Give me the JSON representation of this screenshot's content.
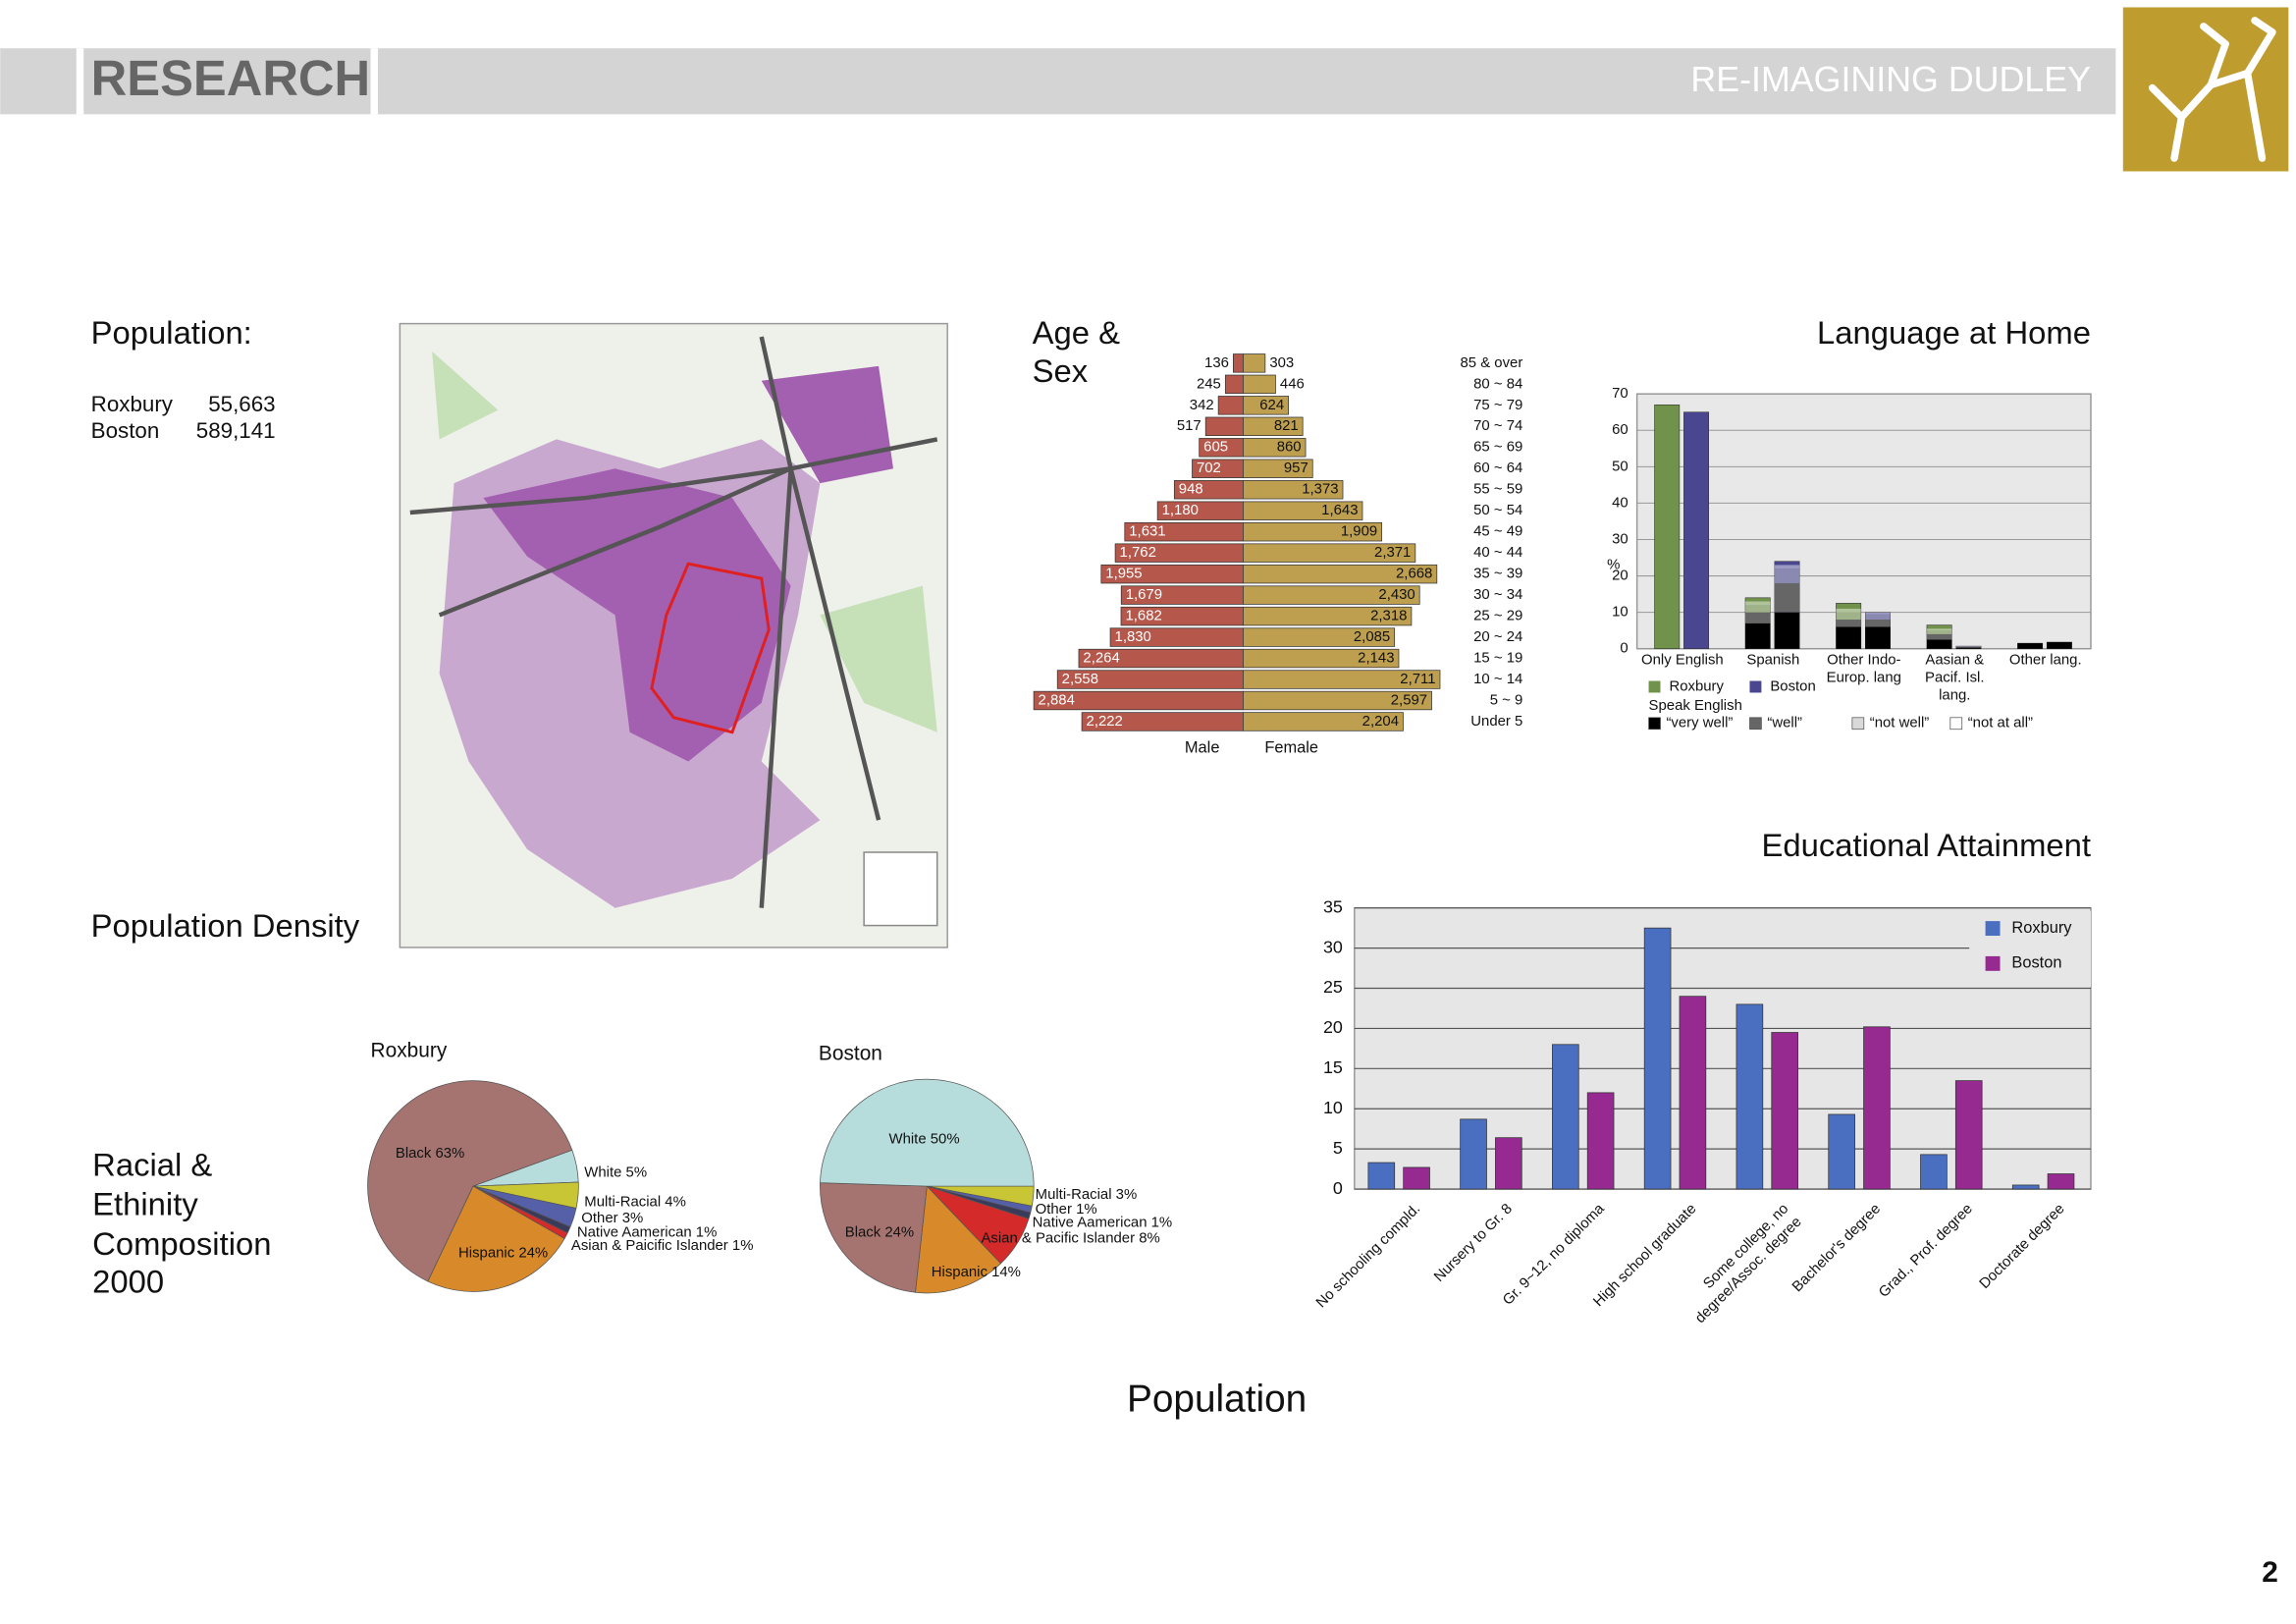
{
  "header": {
    "title": "RESEARCH",
    "subtitle": "RE-IMAGINING DUDLEY"
  },
  "population": {
    "heading": "Population:",
    "rows": [
      [
        "Roxbury",
        "55,663"
      ],
      [
        "Boston",
        "589,141"
      ]
    ]
  },
  "map": {
    "caption": "Population Density"
  },
  "racial_heading": [
    "Racial &",
    "Ethinity",
    "Composition",
    "2000"
  ],
  "caption": "Population",
  "page_number": "2",
  "chart_data": [
    {
      "type": "pyramid",
      "title": [
        "Age &",
        "Sex"
      ],
      "categories": [
        "85 & over",
        "80 ~ 84",
        "75 ~ 79",
        "70 ~ 74",
        "65 ~ 69",
        "60 ~ 64",
        "55 ~ 59",
        "50 ~ 54",
        "45 ~ 49",
        "40 ~ 44",
        "35 ~ 39",
        "30 ~ 34",
        "25 ~ 29",
        "20 ~ 24",
        "15 ~ 19",
        "10 ~ 14",
        "5 ~ 9",
        "Under 5"
      ],
      "series": [
        {
          "name": "Male",
          "color": "#b5574b",
          "values": [
            136,
            245,
            342,
            517,
            605,
            702,
            948,
            1180,
            1631,
            1762,
            1955,
            1679,
            1682,
            1830,
            2264,
            2558,
            2884,
            2222
          ],
          "value_labels": [
            "136",
            "245",
            "342",
            "517",
            "605",
            "702",
            "948",
            "1,180",
            "1,631",
            "1,762",
            "1,955",
            "1,679",
            "1,682",
            "1,830",
            "2,264",
            "2,558",
            "2,884",
            "2,222"
          ]
        },
        {
          "name": "Female",
          "color": "#bd9f4f",
          "values": [
            303,
            446,
            624,
            821,
            860,
            957,
            1373,
            1643,
            1909,
            2371,
            2668,
            2430,
            2318,
            2085,
            2143,
            2711,
            2597,
            2204
          ],
          "value_labels": [
            "303",
            "446",
            "624",
            "821",
            "860",
            "957",
            "1,373",
            "1,643",
            "1,909",
            "2,371",
            "2,668",
            "2,430",
            "2,318",
            "2,085",
            "2,143",
            "2,711",
            "2,597",
            "2,204"
          ]
        }
      ]
    },
    {
      "type": "language",
      "title": "Language at Home",
      "y_label": "%",
      "categories": [
        [
          "Only English"
        ],
        [
          "Spanish"
        ],
        [
          "Other Indo-",
          "Europ. lang"
        ],
        [
          "Aasian &",
          "Pacif. Isl.",
          "lang."
        ],
        [
          "Other lang."
        ]
      ],
      "ylim": [
        0,
        70
      ],
      "yticks": [
        0,
        10,
        20,
        30,
        40,
        50,
        60,
        70
      ],
      "grid": true,
      "series": [
        {
          "name": "Roxbury",
          "color": "#71924a",
          "values": [
            67,
            14,
            12.5,
            6.5,
            1.5
          ]
        },
        {
          "name": "Boston",
          "color": "#4a4790",
          "values": [
            65,
            24,
            10,
            0.7,
            1.8
          ]
        }
      ],
      "proficiency_title": "Speak English",
      "proficiency": [
        {
          "name": "“very well”",
          "color": "#000000",
          "values": [
            [
              null,
              7,
              6,
              2.5,
              1.5
            ],
            [
              null,
              10,
              6,
              0.3,
              1.8
            ]
          ]
        },
        {
          "name": "“well”",
          "color": "#666666",
          "values": [
            [
              null,
              3,
              2,
              1.5,
              0
            ],
            [
              null,
              8,
              2,
              0.2,
              0
            ]
          ]
        },
        {
          "name": "“not well”",
          "color": "#d9d9d9",
          "values": [
            [
              null,
              2,
              2,
              1,
              0
            ],
            [
              null,
              4,
              1.5,
              0.1,
              0
            ]
          ]
        },
        {
          "name": "“not at all”",
          "color": "#ffffff",
          "values": [
            [
              null,
              1,
              1,
              0.5,
              0
            ],
            [
              null,
              1,
              0.5,
              0.1,
              0
            ]
          ]
        }
      ]
    },
    {
      "type": "bar",
      "title": "Educational Attainment",
      "categories": [
        [
          "No schooling compld."
        ],
        [
          "Nursery to Gr. 8"
        ],
        [
          "Gr. 9~12, no diploma"
        ],
        [
          "High school graduate"
        ],
        [
          "Some college, no",
          "degree/Assoc. degree"
        ],
        [
          "Bachelor's degree"
        ],
        [
          "Grad., Prof. degree"
        ],
        [
          "Doctorate degree"
        ]
      ],
      "ylim": [
        0,
        35
      ],
      "yticks": [
        0,
        5,
        10,
        15,
        20,
        25,
        30,
        35
      ],
      "grid": true,
      "series": [
        {
          "name": "Roxbury",
          "color": "#4a6fc0",
          "values": [
            3.3,
            8.7,
            18,
            32.5,
            23,
            9.3,
            4.3,
            0.5
          ]
        },
        {
          "name": "Boston",
          "color": "#962a91",
          "values": [
            2.7,
            6.4,
            12,
            24,
            19.5,
            20.2,
            13.5,
            1.9
          ]
        }
      ]
    },
    {
      "type": "pie",
      "title": "Roxbury",
      "categories": [
        "White",
        "Multi-Racial",
        "Other",
        "Native Aamerican",
        "Asian & Paicific Islander",
        "Hispanic",
        "Black"
      ],
      "values": [
        5,
        4,
        3,
        1,
        1,
        24,
        63
      ],
      "value_labels": [
        "White 5%",
        "Multi-Racial 4%",
        "Other 3%",
        "Native Aamerican 1%",
        "Asian & Paicific Islander 1%",
        "Hispanic 24%",
        "Black 63%"
      ],
      "colors": [
        "#b7dcdc",
        "#c9c636",
        "#5560a8",
        "#3a3a5a",
        "#d42a2a",
        "#d8892a",
        "#a57470"
      ]
    },
    {
      "type": "pie",
      "title": "Boston",
      "categories": [
        "Multi-Racial",
        "Other",
        "Native Aamerican",
        "Asian & Pacific Islander",
        "Hispanic",
        "Black",
        "White"
      ],
      "values": [
        3,
        1,
        1,
        8,
        14,
        24,
        50
      ],
      "value_labels": [
        "Multi-Racial 3%",
        "Other 1%",
        "Native Aamerican 1%",
        "Asian & Pacific Islander 8%",
        "Hispanic 14%",
        "Black 24%",
        "White 50%"
      ],
      "colors": [
        "#c9c636",
        "#5560a8",
        "#3a3a5a",
        "#d42a2a",
        "#d8892a",
        "#a57470",
        "#b7dcdc"
      ]
    }
  ]
}
